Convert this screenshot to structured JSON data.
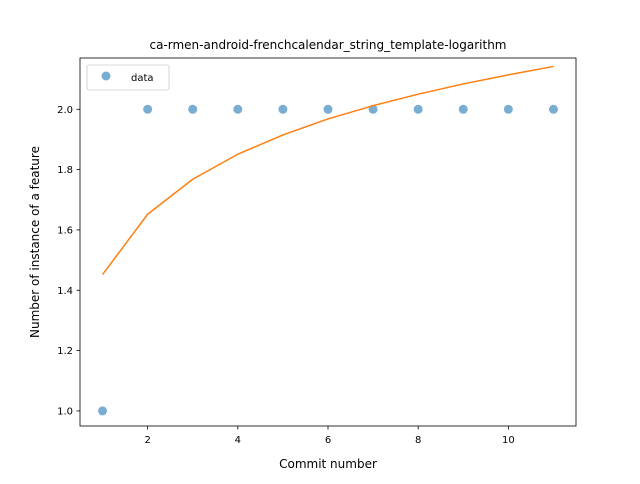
{
  "chart_data": {
    "type": "scatter",
    "title": "ca-rmen-android-frenchcalendar_string_template-logarithm",
    "xlabel": "Commit number",
    "ylabel": "Number of instance of a feature",
    "xlim": [
      0.5,
      11.5
    ],
    "ylim": [
      0.95,
      2.17
    ],
    "xticks": [
      2,
      4,
      6,
      8,
      10
    ],
    "yticks": [
      1.0,
      1.2,
      1.4,
      1.6,
      1.8,
      2.0
    ],
    "xtick_labels": [
      "2",
      "4",
      "6",
      "8",
      "10"
    ],
    "ytick_labels": [
      "1.0",
      "1.2",
      "1.4",
      "1.6",
      "1.8",
      "2.0"
    ],
    "grid": false,
    "legend_position": "top-left",
    "series": [
      {
        "name": "data",
        "kind": "scatter",
        "color": "#1f77b4",
        "x": [
          1,
          2,
          3,
          4,
          5,
          6,
          7,
          8,
          9,
          10,
          11
        ],
        "y": [
          1,
          2,
          2,
          2,
          2,
          2,
          2,
          2,
          2,
          2,
          2
        ]
      },
      {
        "kind": "line",
        "color": "#ff7f0e",
        "x": [
          1,
          2,
          3,
          4,
          5,
          6,
          7,
          8,
          9,
          10,
          11
        ],
        "y": [
          1.452,
          1.652,
          1.768,
          1.851,
          1.915,
          1.968,
          2.012,
          2.05,
          2.084,
          2.114,
          2.142
        ]
      }
    ]
  }
}
